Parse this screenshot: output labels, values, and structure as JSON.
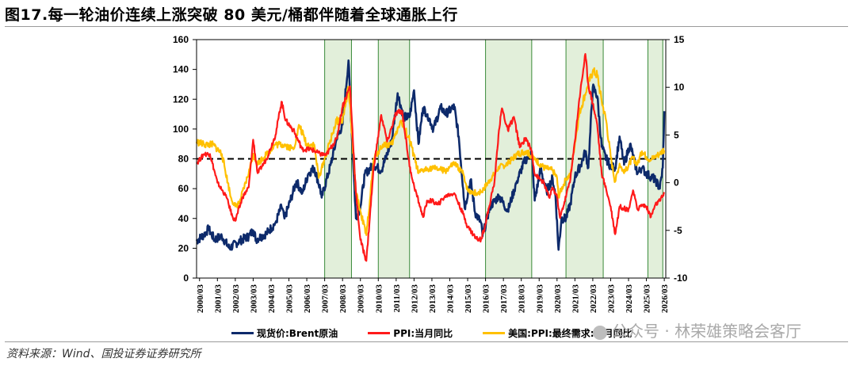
{
  "title": "图17.每一轮油价连续上涨突破 80 美元/桶都伴随着全球通胀上行",
  "source": "资料来源：Wind、国投证券证券研究所",
  "watermark": "公众号 · 林荣雄策略会客厅",
  "colors": {
    "brent": "#0d2a6b",
    "ppi": "#ff1a1a",
    "core": "#ffc000",
    "shade_fill": "#e2efda",
    "shade_stroke": "#3a8a3a",
    "refline": "#000000"
  },
  "chart_data": {
    "type": "line",
    "x_tick_labels": [
      "2000/03",
      "2001/03",
      "2002/03",
      "2003/03",
      "2004/03",
      "2005/03",
      "2006/03",
      "2007/03",
      "2008/03",
      "2009/03",
      "2010/03",
      "2011/03",
      "2012/03",
      "2013/03",
      "2014/03",
      "2015/03",
      "2016/03",
      "2017/03",
      "2018/03",
      "2019/03",
      "2020/03",
      "2021/03",
      "2022/03",
      "2023/03",
      "2024/03",
      "2025/03",
      "2026/03"
    ],
    "y_left": {
      "ylim": [
        0,
        160
      ],
      "ticks": [
        "0",
        "20",
        "40",
        "60",
        "80",
        "100",
        "120",
        "140",
        "160"
      ]
    },
    "y_right": {
      "ylim": [
        -10,
        15
      ],
      "ticks": [
        "-10",
        "-5",
        "0",
        "5",
        "10",
        "15"
      ]
    },
    "reference_line": {
      "axis": "left",
      "y": 80,
      "style": "dashed"
    },
    "shaded_periods": [
      {
        "start": "2007/03",
        "end": "2008/09"
      },
      {
        "start": "2010/03",
        "end": "2011/12"
      },
      {
        "start": "2016/03",
        "end": "2018/10"
      },
      {
        "start": "2020/09",
        "end": "2022/10"
      },
      {
        "start": "2025/04",
        "end": "2026/02"
      }
    ],
    "series": [
      {
        "name": "现货价:Brent原油",
        "axis": "left",
        "color": "#0d2a6b",
        "points": [
          [
            "2000/01",
            25
          ],
          [
            "2000/06",
            29
          ],
          [
            "2000/09",
            33
          ],
          [
            "2001/01",
            26
          ],
          [
            "2001/06",
            28
          ],
          [
            "2001/11",
            20
          ],
          [
            "2002/06",
            25
          ],
          [
            "2002/12",
            28
          ],
          [
            "2003/03",
            32
          ],
          [
            "2003/05",
            26
          ],
          [
            "2003/12",
            30
          ],
          [
            "2004/06",
            37
          ],
          [
            "2004/10",
            48
          ],
          [
            "2004/12",
            40
          ],
          [
            "2005/04",
            52
          ],
          [
            "2005/08",
            65
          ],
          [
            "2005/12",
            57
          ],
          [
            "2006/04",
            70
          ],
          [
            "2006/08",
            74
          ],
          [
            "2006/12",
            60
          ],
          [
            "2007/01",
            54
          ],
          [
            "2007/07",
            76
          ],
          [
            "2007/11",
            93
          ],
          [
            "2008/03",
            103
          ],
          [
            "2008/07",
            146
          ],
          [
            "2008/09",
            102
          ],
          [
            "2008/12",
            40
          ],
          [
            "2009/03",
            48
          ],
          [
            "2009/06",
            70
          ],
          [
            "2009/12",
            76
          ],
          [
            "2010/05",
            72
          ],
          [
            "2010/12",
            92
          ],
          [
            "2011/04",
            124
          ],
          [
            "2011/08",
            108
          ],
          [
            "2011/12",
            108
          ],
          [
            "2012/03",
            126
          ],
          [
            "2012/06",
            90
          ],
          [
            "2012/09",
            114
          ],
          [
            "2012/12",
            110
          ],
          [
            "2013/04",
            100
          ],
          [
            "2013/09",
            115
          ],
          [
            "2013/12",
            110
          ],
          [
            "2014/06",
            115
          ],
          [
            "2014/09",
            95
          ],
          [
            "2014/12",
            60
          ],
          [
            "2015/01",
            47
          ],
          [
            "2015/05",
            66
          ],
          [
            "2015/08",
            44
          ],
          [
            "2015/12",
            37
          ],
          [
            "2016/01",
            28
          ],
          [
            "2016/06",
            48
          ],
          [
            "2016/12",
            55
          ],
          [
            "2017/06",
            45
          ],
          [
            "2017/12",
            65
          ],
          [
            "2018/05",
            78
          ],
          [
            "2018/10",
            85
          ],
          [
            "2018/12",
            52
          ],
          [
            "2019/04",
            73
          ],
          [
            "2019/08",
            58
          ],
          [
            "2019/12",
            67
          ],
          [
            "2020/02",
            55
          ],
          [
            "2020/04",
            19
          ],
          [
            "2020/06",
            40
          ],
          [
            "2020/09",
            40
          ],
          [
            "2020/12",
            50
          ],
          [
            "2021/03",
            68
          ],
          [
            "2021/07",
            76
          ],
          [
            "2021/10",
            85
          ],
          [
            "2021/12",
            74
          ],
          [
            "2022/03",
            128
          ],
          [
            "2022/06",
            122
          ],
          [
            "2022/09",
            88
          ],
          [
            "2022/12",
            80
          ],
          [
            "2023/03",
            75
          ],
          [
            "2023/06",
            74
          ],
          [
            "2023/09",
            95
          ],
          [
            "2023/12",
            76
          ],
          [
            "2024/04",
            90
          ],
          [
            "2024/09",
            70
          ],
          [
            "2024/12",
            74
          ],
          [
            "2025/03",
            70
          ],
          [
            "2025/06",
            68
          ],
          [
            "2025/09",
            66
          ],
          [
            "2025/12",
            60
          ],
          [
            "2026/02",
            74
          ],
          [
            "2026/03",
            112
          ]
        ]
      },
      {
        "name": "PPI:当月同比",
        "axis": "right",
        "color": "#ff1a1a",
        "points": [
          [
            "2000/01",
            2.0
          ],
          [
            "2000/06",
            3.0
          ],
          [
            "2000/10",
            3.0
          ],
          [
            "2001/03",
            0.0
          ],
          [
            "2001/09",
            -1.5
          ],
          [
            "2002/01",
            -3.5
          ],
          [
            "2002/03",
            -4.0
          ],
          [
            "2002/08",
            -1.5
          ],
          [
            "2002/12",
            -0.5
          ],
          [
            "2003/03",
            4.5
          ],
          [
            "2003/06",
            1.0
          ],
          [
            "2003/12",
            2.5
          ],
          [
            "2004/06",
            5.0
          ],
          [
            "2004/10",
            8.5
          ],
          [
            "2005/01",
            6.5
          ],
          [
            "2005/06",
            5.5
          ],
          [
            "2005/12",
            3.5
          ],
          [
            "2006/06",
            3.5
          ],
          [
            "2006/12",
            3.0
          ],
          [
            "2007/04",
            2.9
          ],
          [
            "2007/11",
            4.6
          ],
          [
            "2008/03",
            8.0
          ],
          [
            "2008/08",
            10.1
          ],
          [
            "2008/12",
            -1.1
          ],
          [
            "2009/03",
            -6.0
          ],
          [
            "2009/07",
            -8.2
          ],
          [
            "2009/12",
            1.7
          ],
          [
            "2010/05",
            7.1
          ],
          [
            "2010/09",
            4.3
          ],
          [
            "2011/03",
            7.3
          ],
          [
            "2011/07",
            7.5
          ],
          [
            "2011/12",
            1.7
          ],
          [
            "2012/03",
            -0.3
          ],
          [
            "2012/09",
            -3.6
          ],
          [
            "2012/12",
            -1.9
          ],
          [
            "2013/03",
            -1.9
          ],
          [
            "2013/07",
            -2.3
          ],
          [
            "2013/12",
            -1.4
          ],
          [
            "2014/06",
            -1.1
          ],
          [
            "2014/12",
            -3.3
          ],
          [
            "2015/03",
            -4.6
          ],
          [
            "2015/09",
            -5.9
          ],
          [
            "2015/12",
            -5.9
          ],
          [
            "2016/03",
            -4.3
          ],
          [
            "2016/09",
            0.1
          ],
          [
            "2016/12",
            5.5
          ],
          [
            "2017/02",
            7.8
          ],
          [
            "2017/06",
            5.5
          ],
          [
            "2017/10",
            6.9
          ],
          [
            "2018/02",
            3.7
          ],
          [
            "2018/06",
            4.7
          ],
          [
            "2018/10",
            3.3
          ],
          [
            "2018/12",
            0.9
          ],
          [
            "2019/06",
            0.0
          ],
          [
            "2019/10",
            -1.6
          ],
          [
            "2019/12",
            -0.5
          ],
          [
            "2020/03",
            -1.5
          ],
          [
            "2020/05",
            -3.7
          ],
          [
            "2020/08",
            -2.0
          ],
          [
            "2020/12",
            0.4
          ],
          [
            "2021/03",
            4.4
          ],
          [
            "2021/06",
            8.8
          ],
          [
            "2021/10",
            13.5
          ],
          [
            "2021/12",
            10.3
          ],
          [
            "2022/03",
            8.3
          ],
          [
            "2022/06",
            6.1
          ],
          [
            "2022/09",
            0.9
          ],
          [
            "2022/12",
            -0.7
          ],
          [
            "2023/03",
            -2.5
          ],
          [
            "2023/06",
            -5.4
          ],
          [
            "2023/09",
            -2.5
          ],
          [
            "2023/12",
            -2.7
          ],
          [
            "2024/03",
            -2.8
          ],
          [
            "2024/06",
            -0.8
          ],
          [
            "2024/09",
            -2.8
          ],
          [
            "2024/12",
            -2.3
          ],
          [
            "2025/03",
            -2.5
          ],
          [
            "2025/06",
            -3.6
          ],
          [
            "2025/09",
            -2.3
          ],
          [
            "2025/12",
            -1.9
          ],
          [
            "2026/02",
            -1.4
          ],
          [
            "2026/03",
            -1.0
          ]
        ]
      },
      {
        "name": "美国:PPI:最终需求:当月同比",
        "axis": "right",
        "color": "#ffc000",
        "points": [
          [
            "2000/01",
            4.3
          ],
          [
            "2000/06",
            4.0
          ],
          [
            "2000/12",
            4.0
          ],
          [
            "2001/06",
            3.0
          ],
          [
            "2001/12",
            -1.5
          ],
          [
            "2002/03",
            -2.5
          ],
          [
            "2002/06",
            -2.0
          ],
          [
            "2002/12",
            1.0
          ],
          [
            "2003/03",
            3.0
          ],
          [
            "2003/06",
            2.0
          ],
          [
            "2003/12",
            3.0
          ],
          [
            "2004/06",
            4.0
          ],
          [
            "2004/12",
            4.0
          ],
          [
            "2005/06",
            3.5
          ],
          [
            "2005/10",
            6.0
          ],
          [
            "2006/03",
            4.0
          ],
          [
            "2006/08",
            4.0
          ],
          [
            "2006/11",
            0.5
          ],
          [
            "2007/03",
            2.5
          ],
          [
            "2007/11",
            6.5
          ],
          [
            "2008/03",
            6.5
          ],
          [
            "2008/07",
            10.0
          ],
          [
            "2008/12",
            -1.0
          ],
          [
            "2009/03",
            -3.0
          ],
          [
            "2009/07",
            -5.5
          ],
          [
            "2009/12",
            2.5
          ],
          [
            "2010/06",
            4.0
          ],
          [
            "2010/12",
            4.0
          ],
          [
            "2011/06",
            6.5
          ],
          [
            "2011/12",
            4.5
          ],
          [
            "2012/06",
            1.0
          ],
          [
            "2012/12",
            1.5
          ],
          [
            "2013/06",
            1.5
          ],
          [
            "2013/12",
            1.2
          ],
          [
            "2014/06",
            2.0
          ],
          [
            "2014/12",
            1.0
          ],
          [
            "2015/03",
            -0.8
          ],
          [
            "2015/09",
            -1.1
          ],
          [
            "2015/12",
            -1.0
          ],
          [
            "2016/06",
            0.3
          ],
          [
            "2016/12",
            1.6
          ],
          [
            "2017/06",
            2.0
          ],
          [
            "2017/12",
            3.0
          ],
          [
            "2018/06",
            3.3
          ],
          [
            "2018/12",
            2.5
          ],
          [
            "2019/06",
            1.6
          ],
          [
            "2019/12",
            1.3
          ],
          [
            "2020/03",
            0.5
          ],
          [
            "2020/04",
            -1.4
          ],
          [
            "2020/09",
            0.4
          ],
          [
            "2020/12",
            0.8
          ],
          [
            "2021/03",
            4.2
          ],
          [
            "2021/06",
            7.3
          ],
          [
            "2021/11",
            9.9
          ],
          [
            "2022/03",
            11.7
          ],
          [
            "2022/06",
            11.3
          ],
          [
            "2022/09",
            8.5
          ],
          [
            "2022/12",
            6.5
          ],
          [
            "2023/03",
            2.7
          ],
          [
            "2023/06",
            0.1
          ],
          [
            "2023/09",
            2.0
          ],
          [
            "2023/12",
            1.0
          ],
          [
            "2024/03",
            1.8
          ],
          [
            "2024/06",
            2.6
          ],
          [
            "2024/09",
            1.9
          ],
          [
            "2024/12",
            3.3
          ],
          [
            "2025/03",
            2.7
          ],
          [
            "2025/06",
            2.4
          ],
          [
            "2025/09",
            2.8
          ],
          [
            "2025/12",
            3.0
          ],
          [
            "2026/02",
            3.4
          ],
          [
            "2026/03",
            3.4
          ]
        ]
      }
    ]
  }
}
